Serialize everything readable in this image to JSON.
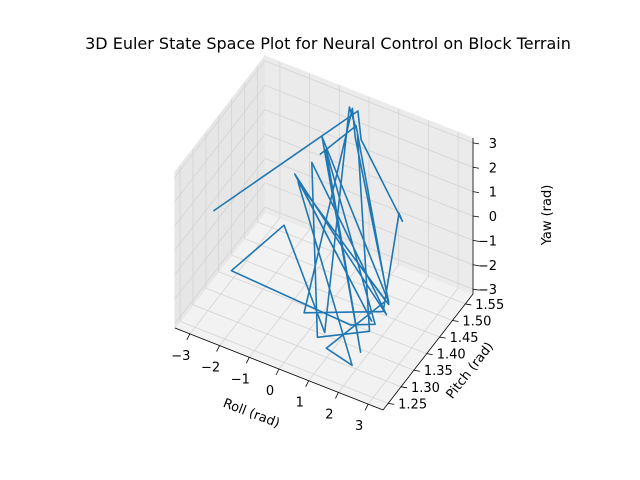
{
  "chart_data": {
    "type": "line",
    "title": "3D Euler State Space Plot for Neural Control on Block Terrain",
    "xlabel": "Roll (rad)",
    "ylabel": "Pitch (rad)",
    "zlabel": "Yaw (rad)",
    "x_ticks": [
      "−3",
      "−2",
      "−1",
      "0",
      "1",
      "2",
      "3"
    ],
    "y_ticks": [
      "1.25",
      "1.30",
      "1.35",
      "1.40",
      "1.45",
      "1.50",
      "1.55"
    ],
    "z_ticks": [
      "−3",
      "−2",
      "−1",
      "0",
      "1",
      "2",
      "3"
    ],
    "xlim": [
      -3.5,
      3.5
    ],
    "ylim": [
      1.23,
      1.58
    ],
    "zlim": [
      -3.2,
      3.2
    ],
    "grid": true,
    "series_color": "#1f77b4",
    "series": [
      {
        "points": [
          [
            -2.9,
            1.31,
            0.8
          ],
          [
            -0.2,
            1.56,
            2.8
          ],
          [
            0.6,
            1.48,
            3.1
          ],
          [
            3.2,
            1.34,
            2.9
          ],
          [
            3.0,
            1.35,
            3.0
          ],
          [
            2.9,
            1.3,
            -0.4
          ],
          [
            0.5,
            1.27,
            -1.2
          ],
          [
            -0.3,
            1.55,
            3.0
          ],
          [
            0.4,
            1.48,
            3.1
          ],
          [
            3.0,
            1.31,
            -0.1
          ],
          [
            -0.8,
            1.49,
            2.4
          ],
          [
            2.4,
            1.27,
            -1.9
          ],
          [
            -0.5,
            1.47,
            2.3
          ],
          [
            2.8,
            1.28,
            -0.7
          ],
          [
            1.1,
            1.38,
            -2.9
          ],
          [
            -2.9,
            1.38,
            -2.6
          ],
          [
            -2.6,
            1.55,
            -2.9
          ],
          [
            0.5,
            1.35,
            -3.1
          ],
          [
            -0.4,
            1.55,
            3.0
          ],
          [
            0.3,
            1.5,
            3.0
          ],
          [
            2.7,
            1.27,
            -0.9
          ],
          [
            0.6,
            1.31,
            -2.7
          ],
          [
            -0.8,
            1.45,
            1.9
          ],
          [
            3.1,
            1.29,
            -0.3
          ],
          [
            -1.2,
            1.43,
            1.5
          ],
          [
            2.6,
            1.29,
            -0.8
          ],
          [
            -0.9,
            1.42,
            1.3
          ],
          [
            2.9,
            1.31,
            -0.1
          ],
          [
            0.9,
            1.31,
            -3.0
          ],
          [
            2.2,
            1.26,
            -2.4
          ],
          [
            -1.0,
            1.42,
            1.4
          ],
          [
            3.0,
            1.31,
            -0.2
          ],
          [
            0.0,
            1.53,
            2.7
          ],
          [
            -0.7,
            1.47,
            2.0
          ]
        ]
      }
    ]
  }
}
